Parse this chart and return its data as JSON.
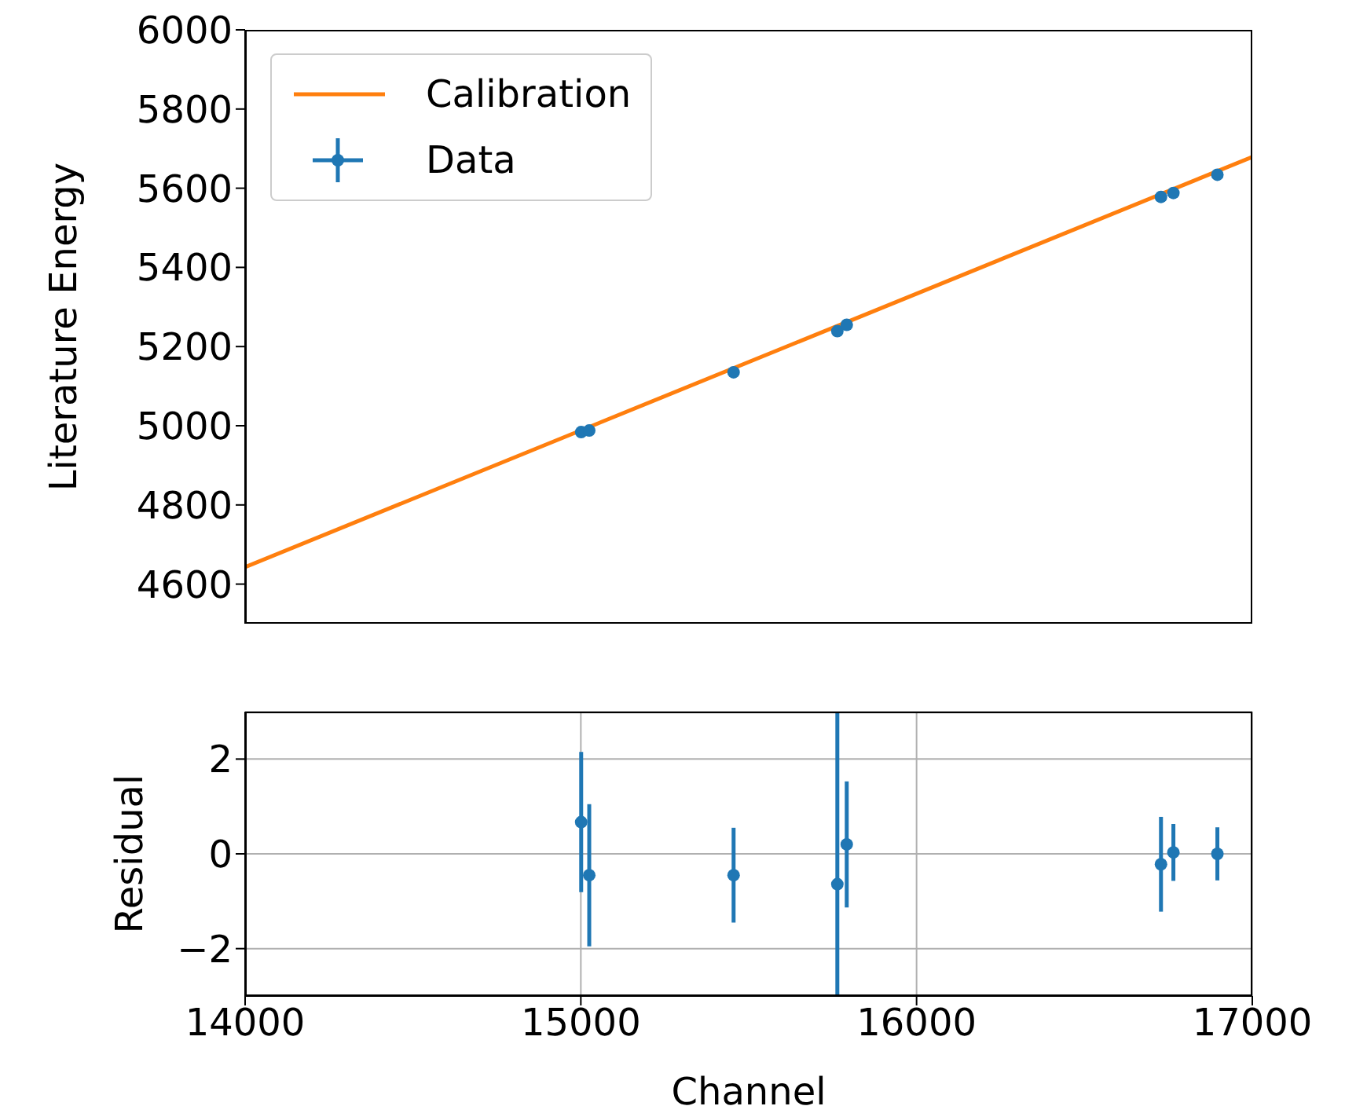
{
  "chart_data": [
    {
      "type": "scatter",
      "ylabel": "Literature Energy",
      "xlim": [
        14000,
        17000
      ],
      "ylim": [
        4500,
        6000
      ],
      "yticks": [
        4600,
        4800,
        5000,
        5200,
        5400,
        5600,
        5800,
        6000
      ],
      "tick_labels": "y",
      "grid": false,
      "legend": "top left",
      "marker": "circle",
      "series": [
        {
          "name": "Calibration",
          "type": "line",
          "marker": "none",
          "color": "#ff7f0e",
          "x": [
            14000,
            17000
          ],
          "values": [
            4643,
            5679
          ]
        },
        {
          "name": "Data",
          "color": "#1f77b4",
          "x": [
            15001,
            15025,
            15455,
            15764,
            15792,
            16728,
            16765,
            16896
          ],
          "values": [
            4984,
            4988,
            5135,
            5239,
            5255,
            5578,
            5588,
            5634
          ]
        }
      ]
    },
    {
      "type": "scatter",
      "xlabel": "Channel",
      "ylabel": "Residual",
      "xlim": [
        14000,
        17000
      ],
      "xticks": [
        14000,
        15000,
        16000,
        17000
      ],
      "ylim": [
        -3,
        3
      ],
      "yticks": [
        {
          "value": -2,
          "label": "−2"
        },
        0,
        2
      ],
      "grid": true,
      "marker": "circle",
      "series": [
        {
          "color": "#1f77b4",
          "x": [
            15001,
            15025,
            15455,
            15764,
            15792,
            16728,
            16765,
            16896
          ],
          "values": [
            0.67,
            -0.45,
            -0.45,
            -0.64,
            0.2,
            -0.22,
            0.03,
            0
          ],
          "errors": [
            1.48,
            1.5,
            1.0,
            [
              -3,
              3
            ],
            1.33,
            1.0,
            0.6,
            0.56
          ]
        }
      ]
    }
  ]
}
